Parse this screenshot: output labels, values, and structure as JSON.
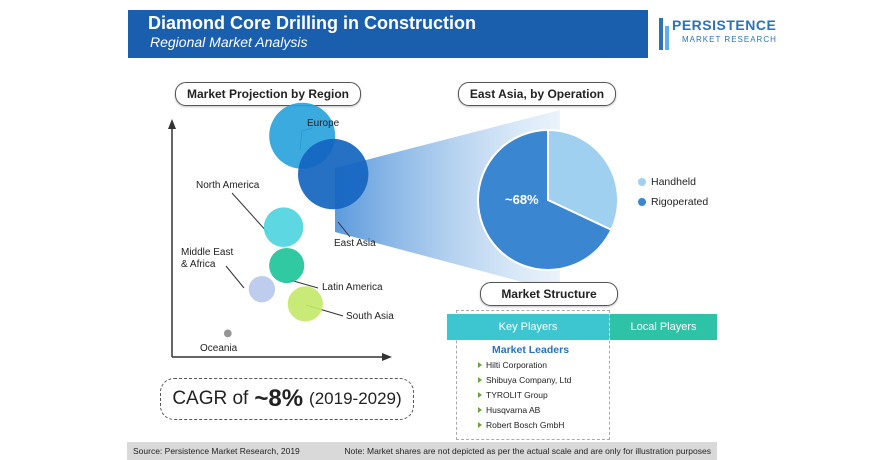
{
  "header": {
    "title": "Diamond Core Drilling in Construction",
    "subtitle": "Regional Market Analysis"
  },
  "logo": {
    "name": "PERSISTENCE",
    "tagline": "MARKET RESEARCH"
  },
  "colors": {
    "brand_blue": "#1a5fad",
    "europe": "#29a3dc",
    "east_asia": "#1565c0",
    "north_america": "#4fd4e0",
    "latin_america": "#1fc49a",
    "middle_east_africa": "#b9c9ec",
    "south_asia": "#c4e86a",
    "oceania": "#8c8c8c",
    "handheld": "#9fd0f0",
    "rigoperated": "#3a86d0",
    "key_players": "#3ec6d0",
    "local_players": "#2ec3a6"
  },
  "chart_data": [
    {
      "type": "scatter",
      "title": "Market Projection by Region",
      "xlabel": "",
      "ylabel": "",
      "points": [
        {
          "label": "Europe",
          "x": 4.2,
          "y": 7.5,
          "size": 3.0
        },
        {
          "label": "East Asia",
          "x": 5.2,
          "y": 6.2,
          "size": 3.2
        },
        {
          "label": "North America",
          "x": 3.6,
          "y": 4.4,
          "size": 1.8
        },
        {
          "label": "Latin America",
          "x": 3.7,
          "y": 3.1,
          "size": 1.6
        },
        {
          "label": "Middle East & Africa",
          "x": 2.9,
          "y": 2.3,
          "size": 1.2
        },
        {
          "label": "South Asia",
          "x": 4.3,
          "y": 1.8,
          "size": 1.6
        },
        {
          "label": "Oceania",
          "x": 1.8,
          "y": 0.8,
          "size": 0.35
        }
      ]
    },
    {
      "type": "pie",
      "title": "East Asia, by Operation",
      "categories": [
        "Handheld",
        "Rigoperated"
      ],
      "values": [
        32,
        68
      ],
      "data_labels": [
        "",
        "~68%"
      ]
    }
  ],
  "cagr": {
    "prefix": "CAGR of",
    "value": "~8%",
    "period": "(2019-2029)"
  },
  "market_structure": {
    "title": "Market Structure",
    "key_players_label": "Key Players",
    "local_players_label": "Local Players",
    "leaders_title": "Market Leaders",
    "leaders": [
      "Hilti Corporation",
      "Shibuya Company, Ltd",
      "TYROLIT Group",
      "Husqvarna AB",
      "Robert Bosch GmbH"
    ]
  },
  "footer": {
    "source": "Source: Persistence Market Research, 2019",
    "note": "Note: Market shares are not depicted as per the actual scale and are only for illustration purposes"
  }
}
